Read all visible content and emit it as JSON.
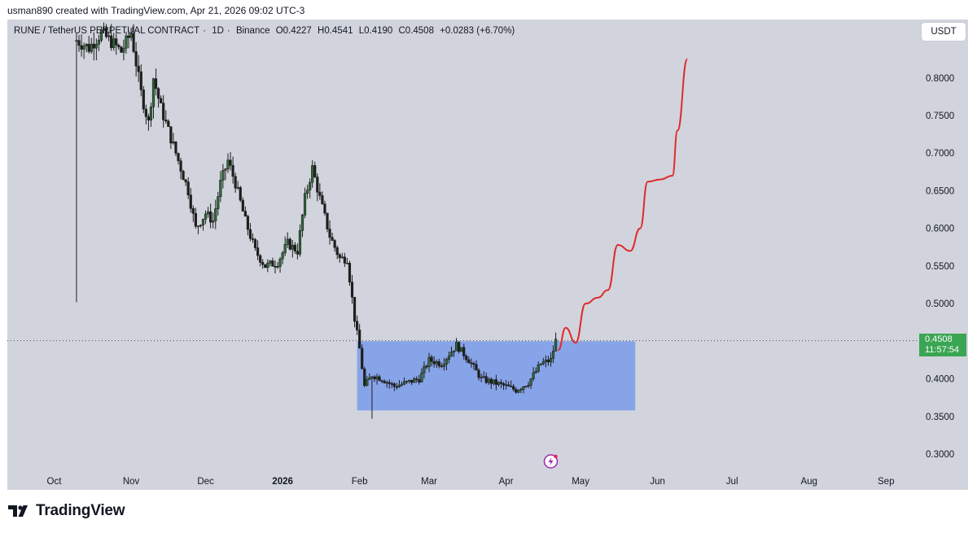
{
  "attribution": "usman890 created with TradingView.com, Apr 21, 2026 09:02 UTC-3",
  "symbol": {
    "name": "RUNE / TetherUS PERPETUAL CONTRACT",
    "interval": "1D",
    "exchange": "Binance",
    "open": "O0.4227",
    "high": "H0.4541",
    "low": "L0.4190",
    "close": "C0.4508",
    "change": "+0.0283 (+6.70%)"
  },
  "currency_button": "USDT",
  "last_price": {
    "value": "0.4508",
    "countdown": "11:57:54"
  },
  "brand": "TradingView",
  "colors": {
    "background": "#d1d4dc",
    "candle_up": "#1e1e1e",
    "candle_body_up": "#2e6b3a",
    "candle_down": "#1e1e1e",
    "range_box": "#7b9bea",
    "projection_line": "#e02a2a",
    "price_tag": "#3aa552"
  },
  "chart_data": {
    "type": "candlestick",
    "ylim": [
      0.27,
      0.85
    ],
    "y_ticks": [
      "0.8000",
      "0.7500",
      "0.7000",
      "0.6500",
      "0.6000",
      "0.5500",
      "0.5000",
      "0.4500",
      "0.4000",
      "0.3500",
      "0.3000"
    ],
    "x_ticks": [
      "Oct",
      "Nov",
      "Dec",
      "2026",
      "Feb",
      "Mar",
      "Apr",
      "May",
      "Jun",
      "Jul",
      "Aug",
      "Sep"
    ],
    "close_path": [
      {
        "date": "2025-10-10",
        "close": 0.85
      },
      {
        "date": "2025-10-15",
        "close": 0.84
      },
      {
        "date": "2025-10-20",
        "close": 0.86
      },
      {
        "date": "2025-10-25",
        "close": 0.845
      },
      {
        "date": "2025-10-28",
        "close": 0.835
      },
      {
        "date": "2025-11-01",
        "close": 0.86
      },
      {
        "date": "2025-11-05",
        "close": 0.78
      },
      {
        "date": "2025-11-08",
        "close": 0.74
      },
      {
        "date": "2025-11-10",
        "close": 0.8
      },
      {
        "date": "2025-11-13",
        "close": 0.76
      },
      {
        "date": "2025-11-17",
        "close": 0.72
      },
      {
        "date": "2025-11-20",
        "close": 0.69
      },
      {
        "date": "2025-11-24",
        "close": 0.65
      },
      {
        "date": "2025-11-27",
        "close": 0.6
      },
      {
        "date": "2025-12-01",
        "close": 0.62
      },
      {
        "date": "2025-12-04",
        "close": 0.61
      },
      {
        "date": "2025-12-07",
        "close": 0.66
      },
      {
        "date": "2025-12-10",
        "close": 0.69
      },
      {
        "date": "2025-12-13",
        "close": 0.66
      },
      {
        "date": "2025-12-17",
        "close": 0.61
      },
      {
        "date": "2025-12-21",
        "close": 0.57
      },
      {
        "date": "2025-12-25",
        "close": 0.55
      },
      {
        "date": "2025-12-30",
        "close": 0.555
      },
      {
        "date": "2026-01-03",
        "close": 0.58
      },
      {
        "date": "2026-01-07",
        "close": 0.57
      },
      {
        "date": "2026-01-10",
        "close": 0.64
      },
      {
        "date": "2026-01-13",
        "close": 0.68
      },
      {
        "date": "2026-01-16",
        "close": 0.64
      },
      {
        "date": "2026-01-20",
        "close": 0.59
      },
      {
        "date": "2026-01-24",
        "close": 0.56
      },
      {
        "date": "2026-01-27",
        "close": 0.56
      },
      {
        "date": "2026-01-30",
        "close": 0.48
      },
      {
        "date": "2026-02-01",
        "close": 0.44
      },
      {
        "date": "2026-02-03",
        "close": 0.39
      },
      {
        "date": "2026-02-06",
        "close": 0.405
      },
      {
        "date": "2026-02-10",
        "close": 0.4
      },
      {
        "date": "2026-02-15",
        "close": 0.39
      },
      {
        "date": "2026-02-20",
        "close": 0.395
      },
      {
        "date": "2026-02-25",
        "close": 0.4
      },
      {
        "date": "2026-03-01",
        "close": 0.425
      },
      {
        "date": "2026-03-06",
        "close": 0.42
      },
      {
        "date": "2026-03-12",
        "close": 0.445
      },
      {
        "date": "2026-03-17",
        "close": 0.425
      },
      {
        "date": "2026-03-22",
        "close": 0.4
      },
      {
        "date": "2026-03-27",
        "close": 0.395
      },
      {
        "date": "2026-04-01",
        "close": 0.39
      },
      {
        "date": "2026-04-05",
        "close": 0.385
      },
      {
        "date": "2026-04-10",
        "close": 0.395
      },
      {
        "date": "2026-04-15",
        "close": 0.42
      },
      {
        "date": "2026-04-19",
        "close": 0.425
      },
      {
        "date": "2026-04-21",
        "close": 0.4508
      }
    ],
    "range_box": {
      "date_from": "2026-01-31",
      "date_to": "2026-05-23",
      "y_low": 0.358,
      "y_high": 0.45
    },
    "projection": [
      {
        "date": "2026-04-22",
        "y": 0.438
      },
      {
        "date": "2026-04-25",
        "y": 0.468
      },
      {
        "date": "2026-04-29",
        "y": 0.448
      },
      {
        "date": "2026-05-03",
        "y": 0.5
      },
      {
        "date": "2026-05-08",
        "y": 0.508
      },
      {
        "date": "2026-05-12",
        "y": 0.518
      },
      {
        "date": "2026-05-16",
        "y": 0.578
      },
      {
        "date": "2026-05-21",
        "y": 0.57
      },
      {
        "date": "2026-05-25",
        "y": 0.6
      },
      {
        "date": "2026-05-28",
        "y": 0.662
      },
      {
        "date": "2026-06-02",
        "y": 0.665
      },
      {
        "date": "2026-06-07",
        "y": 0.67
      },
      {
        "date": "2026-06-09",
        "y": 0.73
      },
      {
        "date": "2026-06-13",
        "y": 0.825
      }
    ],
    "last_price_line": 0.4508
  }
}
